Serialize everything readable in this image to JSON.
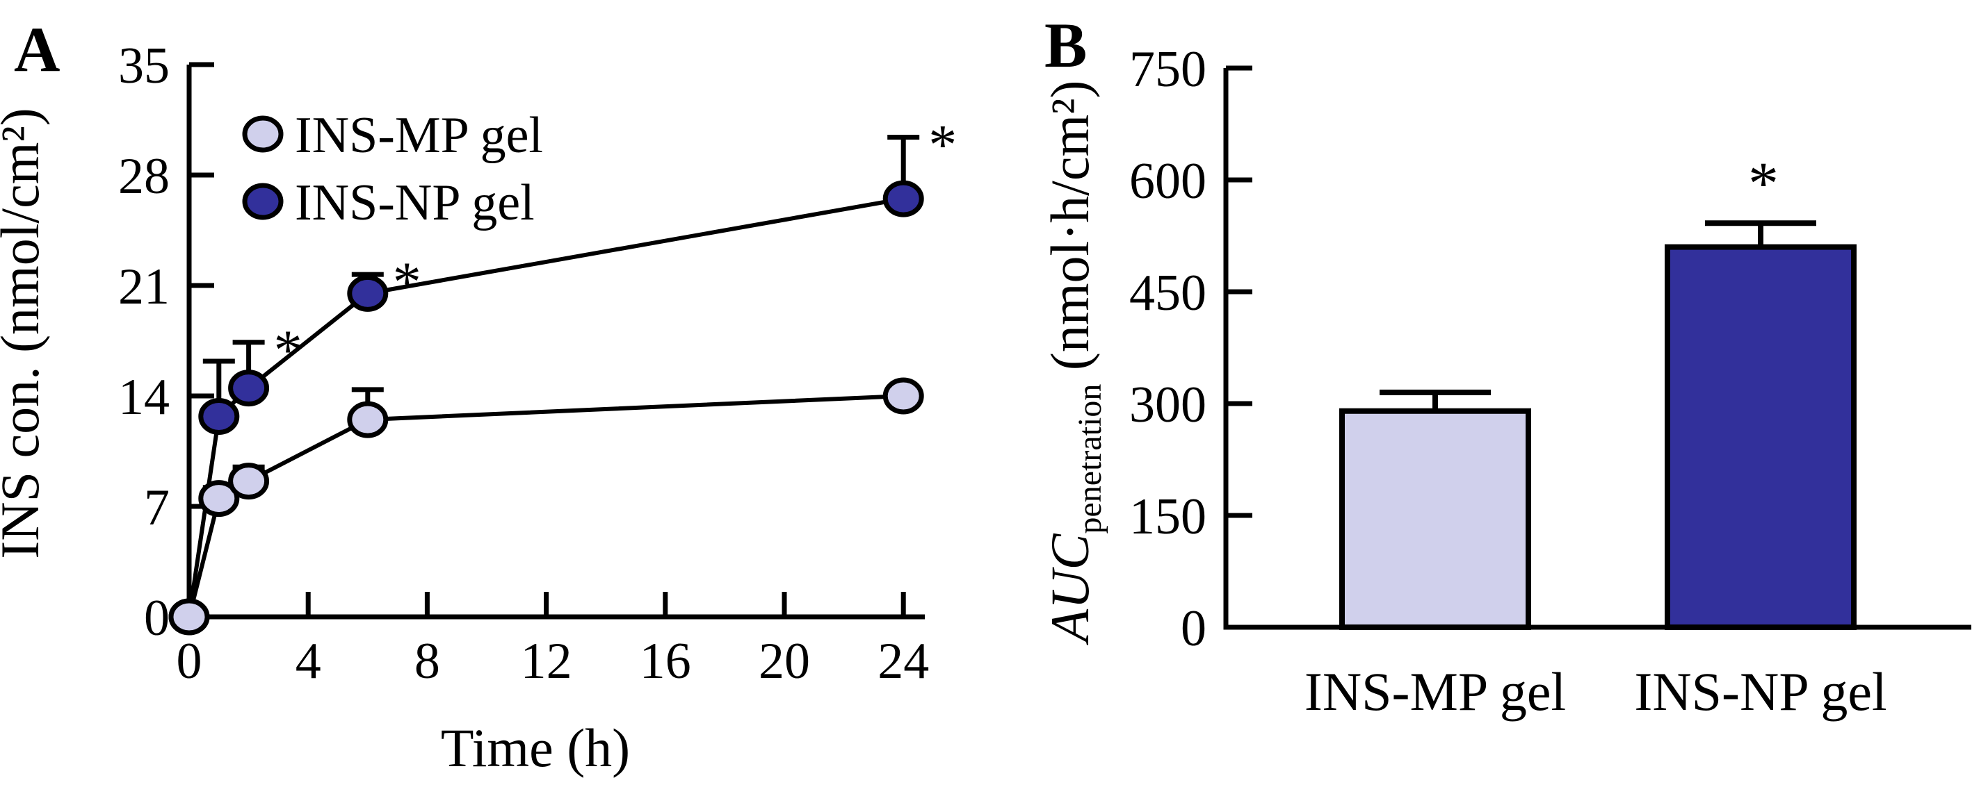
{
  "colors": {
    "mp_fill": "#d0d0ec",
    "np_fill": "#32309b",
    "stroke": "#000000",
    "background": "#ffffff"
  },
  "panel_a": {
    "label": "A",
    "x_axis": {
      "label": "Time (h)",
      "tick_labels": [
        "0",
        "4",
        "8",
        "12",
        "16",
        "20",
        "24"
      ]
    },
    "y_axis": {
      "label": "INS con. (nmol/cm²)",
      "tick_labels": [
        "0",
        "7",
        "14",
        "21",
        "28",
        "35"
      ]
    },
    "legend": {
      "items": [
        {
          "label": "INS-MP gel",
          "color": "#d0d0ec"
        },
        {
          "label": "INS-NP gel",
          "color": "#32309b"
        }
      ]
    },
    "significance_marker": "*"
  },
  "panel_b": {
    "label": "B",
    "y_axis": {
      "label_italic": "AUC",
      "label_sub": "penetration",
      "label_rest": " (nmol·h/cm²)",
      "tick_labels": [
        "0",
        "150",
        "300",
        "450",
        "600",
        "750"
      ]
    },
    "x_categories": [
      "INS-MP gel",
      "INS-NP gel"
    ],
    "significance_marker": "*"
  },
  "chart_data": [
    {
      "panel": "A",
      "type": "line",
      "title": "",
      "xlabel": "Time (h)",
      "ylabel": "INS con. (nmol/cm2)",
      "x": [
        0,
        1,
        2,
        6,
        24
      ],
      "xticks": [
        0,
        4,
        8,
        12,
        16,
        20,
        24
      ],
      "yticks": [
        0,
        7,
        14,
        21,
        28,
        35
      ],
      "xlim": [
        0,
        25
      ],
      "ylim": [
        0,
        35
      ],
      "grid": false,
      "legend_position": "upper-left-inside",
      "error_bars": "upper-only",
      "series": [
        {
          "name": "INS-NP gel",
          "color": "#32309b",
          "values": [
            0,
            12.7,
            14.5,
            20.5,
            26.5
          ],
          "errors_upper": [
            0,
            3.5,
            2.9,
            1.2,
            3.9
          ],
          "significant": [
            false,
            false,
            true,
            true,
            true
          ]
        },
        {
          "name": "INS-MP gel",
          "color": "#d0d0ec",
          "values": [
            0,
            7.5,
            8.6,
            12.5,
            14.0
          ],
          "errors_upper": [
            0,
            0.7,
            0.9,
            1.9,
            0.5
          ],
          "significant": [
            false,
            false,
            false,
            false,
            false
          ]
        }
      ]
    },
    {
      "panel": "B",
      "type": "bar",
      "title": "",
      "xlabel": "",
      "ylabel": "AUC_penetration (nmol·h/cm2)",
      "categories": [
        "INS-MP gel",
        "INS-NP gel"
      ],
      "values": [
        290,
        510
      ],
      "errors_upper": [
        25,
        32
      ],
      "significant": [
        false,
        true
      ],
      "bar_colors": [
        "#d0d0ec",
        "#32309b"
      ],
      "yticks": [
        0,
        150,
        300,
        450,
        600,
        750
      ],
      "ylim": [
        0,
        750
      ],
      "grid": false,
      "error_bars": "upper-only"
    }
  ]
}
